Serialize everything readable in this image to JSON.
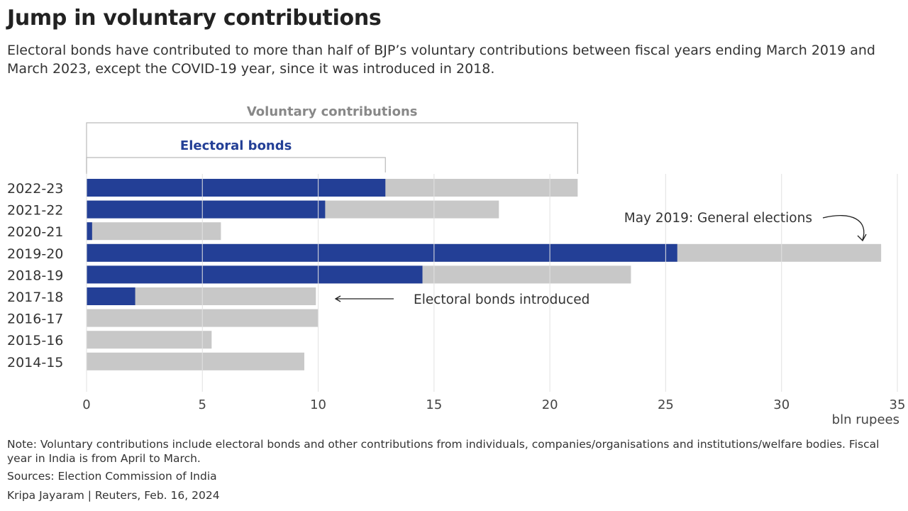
{
  "title": "Jump in voluntary contributions",
  "subtitle": "Electoral bonds have contributed to more than half of BJP’s voluntary contributions between fiscal years ending March 2019 and March 2023, except the COVID-19 year, since it was introduced in 2018.",
  "chart_data": {
    "type": "bar",
    "orientation": "horizontal",
    "stacked": "overlay",
    "categories": [
      "2022-23",
      "2021-22",
      "2020-21",
      "2019-20",
      "2018-19",
      "2017-18",
      "2016-17",
      "2015-16",
      "2014-15"
    ],
    "series": [
      {
        "name": "Voluntary contributions",
        "color": "#c8c8c8",
        "values": [
          21.2,
          17.8,
          5.8,
          34.3,
          23.5,
          9.9,
          10.0,
          5.4,
          9.4
        ]
      },
      {
        "name": "Electoral bonds",
        "color": "#233f96",
        "values": [
          12.9,
          10.3,
          0.24,
          25.5,
          14.5,
          2.1,
          0,
          0,
          0
        ]
      }
    ],
    "xlim": [
      0,
      35
    ],
    "xticks": [
      0,
      5,
      10,
      15,
      20,
      25,
      30,
      35
    ],
    "xlabel": "bln rupees",
    "grid": true,
    "annotations": {
      "elections": "May 2019: General elections",
      "bonds": "Electoral bonds introduced"
    }
  },
  "footer": {
    "note": "Note: Voluntary contributions include electoral bonds and other contributions from individuals, companies/organisations and institutions/welfare bodies. Fiscal year in India is from April to March.",
    "sources": "Sources: Election Commission of India",
    "credit": "Kripa Jayaram  |  Reuters, Feb. 16, 2024"
  }
}
